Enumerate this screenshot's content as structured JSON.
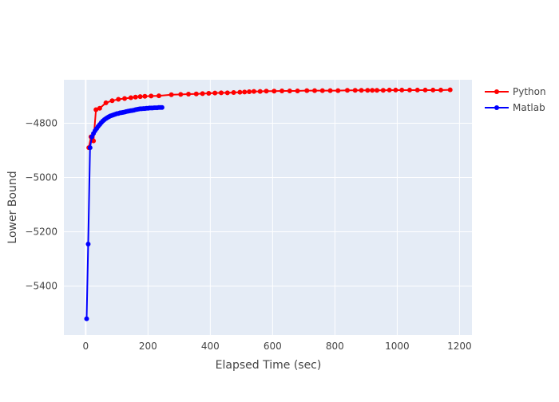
{
  "chart_data": {
    "type": "line",
    "xlabel": "Elapsed Time (sec)",
    "ylabel": "Lower Bound",
    "xlim": [
      -70,
      1240
    ],
    "ylim": [
      -5580,
      -4640
    ],
    "x_ticks": [
      0,
      200,
      400,
      600,
      800,
      1000,
      1200
    ],
    "x_tick_labels": [
      "0",
      "200",
      "400",
      "600",
      "800",
      "1000",
      "1200"
    ],
    "y_ticks": [
      -5400,
      -5200,
      -5000,
      -4800
    ],
    "y_tick_labels": [
      "−5400",
      "−5200",
      "−5000",
      "−4800"
    ],
    "grid": true,
    "legend_position": "top-right",
    "series": [
      {
        "name": "Python",
        "color": "#ff0000",
        "x": [
          10,
          17,
          25,
          33,
          45,
          65,
          85,
          105,
          125,
          145,
          160,
          175,
          190,
          210,
          235,
          275,
          305,
          330,
          355,
          375,
          395,
          415,
          435,
          455,
          475,
          495,
          510,
          525,
          540,
          560,
          580,
          605,
          630,
          655,
          680,
          710,
          735,
          760,
          785,
          810,
          840,
          865,
          885,
          905,
          920,
          935,
          955,
          975,
          995,
          1015,
          1040,
          1065,
          1090,
          1115,
          1140,
          1170
        ],
        "y": [
          -4890,
          -4850,
          -4865,
          -4750,
          -4745,
          -4725,
          -4717,
          -4712,
          -4709,
          -4706,
          -4704,
          -4702,
          -4701,
          -4700,
          -4699,
          -4695,
          -4694,
          -4693,
          -4692,
          -4691,
          -4690,
          -4689,
          -4688,
          -4688,
          -4687,
          -4686,
          -4685,
          -4684,
          -4683,
          -4683,
          -4682,
          -4682,
          -4681,
          -4681,
          -4681,
          -4680,
          -4680,
          -4680,
          -4680,
          -4680,
          -4679,
          -4679,
          -4679,
          -4679,
          -4679,
          -4679,
          -4679,
          -4678,
          -4678,
          -4678,
          -4678,
          -4678,
          -4678,
          -4678,
          -4678,
          -4677
        ]
      },
      {
        "name": "Matlab",
        "color": "#0000ff",
        "x": [
          3,
          8,
          14,
          20,
          25,
          30,
          35,
          40,
          45,
          50,
          55,
          60,
          65,
          70,
          75,
          80,
          85,
          90,
          95,
          100,
          105,
          110,
          115,
          120,
          125,
          130,
          135,
          140,
          145,
          150,
          155,
          160,
          165,
          170,
          175,
          180,
          185,
          190,
          195,
          200,
          205,
          210,
          215,
          220,
          225,
          230,
          235,
          240,
          245
        ],
        "y": [
          -5520,
          -5245,
          -4890,
          -4850,
          -4838,
          -4828,
          -4820,
          -4812,
          -4805,
          -4798,
          -4792,
          -4787,
          -4783,
          -4779,
          -4776,
          -4773,
          -4771,
          -4769,
          -4767,
          -4765,
          -4764,
          -4762,
          -4761,
          -4760,
          -4759,
          -4757,
          -4756,
          -4755,
          -4754,
          -4753,
          -4752,
          -4750,
          -4749,
          -4748,
          -4747,
          -4747,
          -4746,
          -4746,
          -4745,
          -4745,
          -4744,
          -4744,
          -4744,
          -4743,
          -4743,
          -4743,
          -4742,
          -4742,
          -4742
        ]
      }
    ]
  }
}
